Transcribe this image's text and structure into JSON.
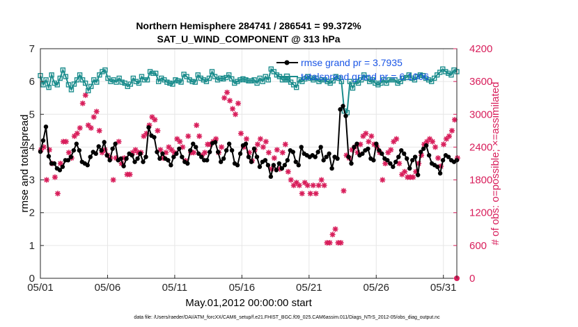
{
  "title_line1": "Northern Hemisphere 284741 / 286541 = 99.372%",
  "title_line2": "SAT_U_WIND_COMPONENT @ 313 hPa",
  "footer": "data file: /Users/raeder/DAI/ATM_forcXX/CAM6_setup/f.e21.FHIST_BGC.f09_025.CAM6assim.011/Diags_NTrS_2012-05/obs_diag_output.nc",
  "colors": {
    "rmse": "#000000",
    "spread": "#1a8c8c",
    "obs": "#d81e5b",
    "legend_text": "#1a55e6",
    "grid": "#e6e6e6"
  },
  "chart_data": {
    "type": "line",
    "title": "Northern Hemisphere 284741 / 286541 = 99.372%",
    "subtitle": "SAT_U_WIND_COMPONENT @ 313 hPa",
    "xlabel": "May.01,2012 00:00:00 start",
    "ylabel": "rmse and totalspread",
    "y2label": "# of obs: o=possible; ×=assimilated",
    "xlim": [
      1,
      32
    ],
    "ylim": [
      0,
      7
    ],
    "y2lim": [
      0,
      4200
    ],
    "grid": true,
    "legend_position": "top-right",
    "x_ticks": [
      1,
      6,
      11,
      16,
      21,
      26,
      31
    ],
    "x_tick_labels": [
      "05/01",
      "05/06",
      "05/11",
      "05/16",
      "05/21",
      "05/26",
      "05/31"
    ],
    "y_ticks": [
      0,
      1,
      2,
      3,
      4,
      5,
      6,
      7
    ],
    "y_tick_labels": [
      "0",
      "1",
      "2",
      "3",
      "4",
      "5",
      "6",
      "7"
    ],
    "y2_ticks": [
      0,
      600,
      1200,
      1800,
      2400,
      3000,
      3600,
      4200
    ],
    "y2_tick_labels": [
      "0",
      "600",
      "1200",
      "1800",
      "2400",
      "3000",
      "3600",
      "4200"
    ],
    "series": [
      {
        "name": "rmse grand pr = 3.7935",
        "axis": "left",
        "marker": "filled-circle",
        "color": "#000000",
        "values": [
          3.86,
          4.2,
          4.62,
          3.72,
          3.5,
          3.5,
          3.35,
          3.3,
          3.4,
          3.6,
          3.6,
          3.7,
          3.9,
          4.1,
          3.9,
          3.55,
          3.5,
          3.45,
          3.7,
          3.85,
          3.8,
          4.02,
          3.9,
          4.15,
          3.75,
          3.6,
          3.95,
          4.1,
          3.6,
          3.65,
          3.42,
          3.65,
          3.8,
          3.75,
          3.55,
          3.65,
          3.8,
          3.55,
          3.7,
          4.6,
          4.35,
          4.3,
          3.85,
          3.65,
          3.8,
          3.65,
          3.6,
          3.45,
          3.7,
          3.8,
          3.95,
          3.7,
          3.55,
          3.5,
          3.9,
          4.1,
          4.0,
          3.8,
          3.7,
          3.6,
          3.6,
          3.85,
          4.12,
          4.15,
          3.85,
          3.55,
          3.65,
          3.9,
          4.1,
          3.9,
          3.5,
          3.45,
          3.8,
          4.05,
          4.1,
          3.7,
          3.55,
          3.95,
          3.7,
          3.4,
          3.55,
          3.6,
          3.45,
          3.1,
          3.45,
          3.3,
          3.5,
          3.35,
          3.45,
          3.6,
          3.9,
          3.85,
          3.55,
          3.45,
          4.0,
          3.8,
          3.75,
          3.7,
          3.75,
          3.7,
          3.85,
          4.0,
          3.6,
          3.7,
          3.8,
          3.35,
          3.7,
          3.65,
          5.15,
          5.25,
          4.95,
          3.7,
          3.5,
          4.0,
          4.1,
          3.75,
          3.8,
          3.9,
          3.95,
          3.65,
          3.6,
          4.1,
          3.9,
          3.8,
          3.65,
          3.6,
          3.5,
          3.4,
          3.55,
          3.7,
          3.9,
          3.8,
          3.65,
          3.35,
          3.6,
          3.7,
          3.15,
          3.85,
          3.95,
          4.05,
          3.75,
          3.5,
          3.45,
          3.4,
          3.2,
          3.6,
          3.75,
          3.7,
          3.6,
          3.55,
          3.6
        ]
      },
      {
        "name": "totalspread grand pr = 6.1006",
        "axis": "left",
        "marker": "open-square",
        "color": "#1a8c8c",
        "values": [
          6.18,
          5.9,
          6.05,
          5.82,
          6.2,
          5.95,
          5.9,
          6.1,
          6.35,
          6.15,
          5.9,
          5.75,
          5.92,
          6.05,
          6.2,
          6.05,
          5.95,
          5.72,
          5.85,
          6.05,
          5.98,
          6.2,
          6.3,
          6.35,
          6.1,
          6.0,
          6.05,
          5.98,
          6.1,
          5.98,
          5.95,
          5.85,
          5.92,
          6.1,
          6.0,
          5.95,
          6.15,
          6.05,
          6.05,
          6.3,
          6.25,
          6.25,
          6.0,
          6.1,
          6.05,
          5.98,
          5.95,
          5.92,
          6.05,
          6.02,
          5.98,
          6.22,
          6.15,
          6.05,
          6.0,
          5.98,
          6.2,
          6.1,
          6.05,
          6.0,
          6.1,
          6.3,
          6.15,
          6.05,
          6.1,
          6.08,
          6.12,
          6.2,
          6.08,
          5.95,
          6.0,
          6.05,
          6.08,
          6.05,
          6.02,
          6.02,
          6.05,
          5.95,
          6.1,
          6.0,
          6.15,
          6.05,
          6.38,
          6.3,
          6.2,
          6.15,
          6.05,
          6.05,
          6.05,
          5.98,
          5.9,
          5.82,
          6.05,
          6.0,
          6.08,
          6.15,
          6.1,
          6.05,
          6.1,
          6.0,
          6.05,
          6.05,
          6.0,
          5.95,
          6.02,
          6.15,
          6.1,
          6.0,
          5.1,
          5.05,
          6.0,
          5.8,
          6.0,
          5.95,
          6.05,
          6.2,
          6.1,
          6.0,
          6.05,
          5.95,
          5.9,
          5.95,
          6.05,
          5.95,
          6.05,
          6.05,
          6.05,
          5.95,
          6.0,
          6.1,
          6.12,
          6.2,
          6.1,
          6.05,
          6.15,
          6.2,
          6.18,
          6.1,
          6.05,
          6.0,
          6.1,
          6.2,
          6.28,
          6.38,
          6.3,
          6.25,
          6.2,
          6.35,
          6.3
        ]
      },
      {
        "name": "# of obs",
        "axis": "right",
        "marker": "asterisk",
        "color": "#d81e5b",
        "values": [
          2350,
          2400,
          1800,
          2350,
          2100,
          1850,
          1550,
          2100,
          2500,
          2500,
          2300,
          2200,
          2600,
          2650,
          2750,
          3200,
          3350,
          2800,
          2750,
          2950,
          3050,
          2700,
          2300,
          2350,
          2250,
          2200,
          1800,
          2200,
          2500,
          2100,
          2200,
          1900,
          1900,
          2300,
          2350,
          2300,
          2300,
          2600,
          2650,
          2800,
          2950,
          2900,
          2700,
          2350,
          2200,
          2300,
          2400,
          2350,
          2300,
          2550,
          2500,
          2400,
          2150,
          2600,
          2300,
          2300,
          2800,
          2600,
          2250,
          2300,
          2450,
          2450,
          2500,
          2550,
          2300,
          2400,
          3300,
          3400,
          3250,
          3100,
          3000,
          3200,
          2650,
          2400,
          2550,
          2300,
          2150,
          2350,
          2450,
          2550,
          2400,
          2500,
          2300,
          2000,
          2200,
          2350,
          2000,
          2300,
          2450,
          1950,
          1800,
          1700,
          1750,
          1700,
          1550,
          1750,
          1700,
          1550,
          1700,
          1550,
          1700,
          1800,
          1700,
          650,
          650,
          800,
          900,
          650,
          650,
          1600,
          2250,
          2200,
          2350,
          2400,
          2300,
          2450,
          2600,
          2650,
          2500,
          2600,
          2450,
          2400,
          2300,
          1800,
          2100,
          2300,
          2350,
          2500,
          2550,
          2100,
          1900,
          1950,
          1850,
          1850,
          1850,
          1950,
          2100,
          2250,
          2450,
          2500,
          2550,
          2500,
          2400,
          2200,
          2050,
          2450,
          2550,
          2600,
          2700,
          2900,
          2200
        ]
      }
    ],
    "obs_zero_marker": {
      "x": 32,
      "value": 0
    }
  }
}
